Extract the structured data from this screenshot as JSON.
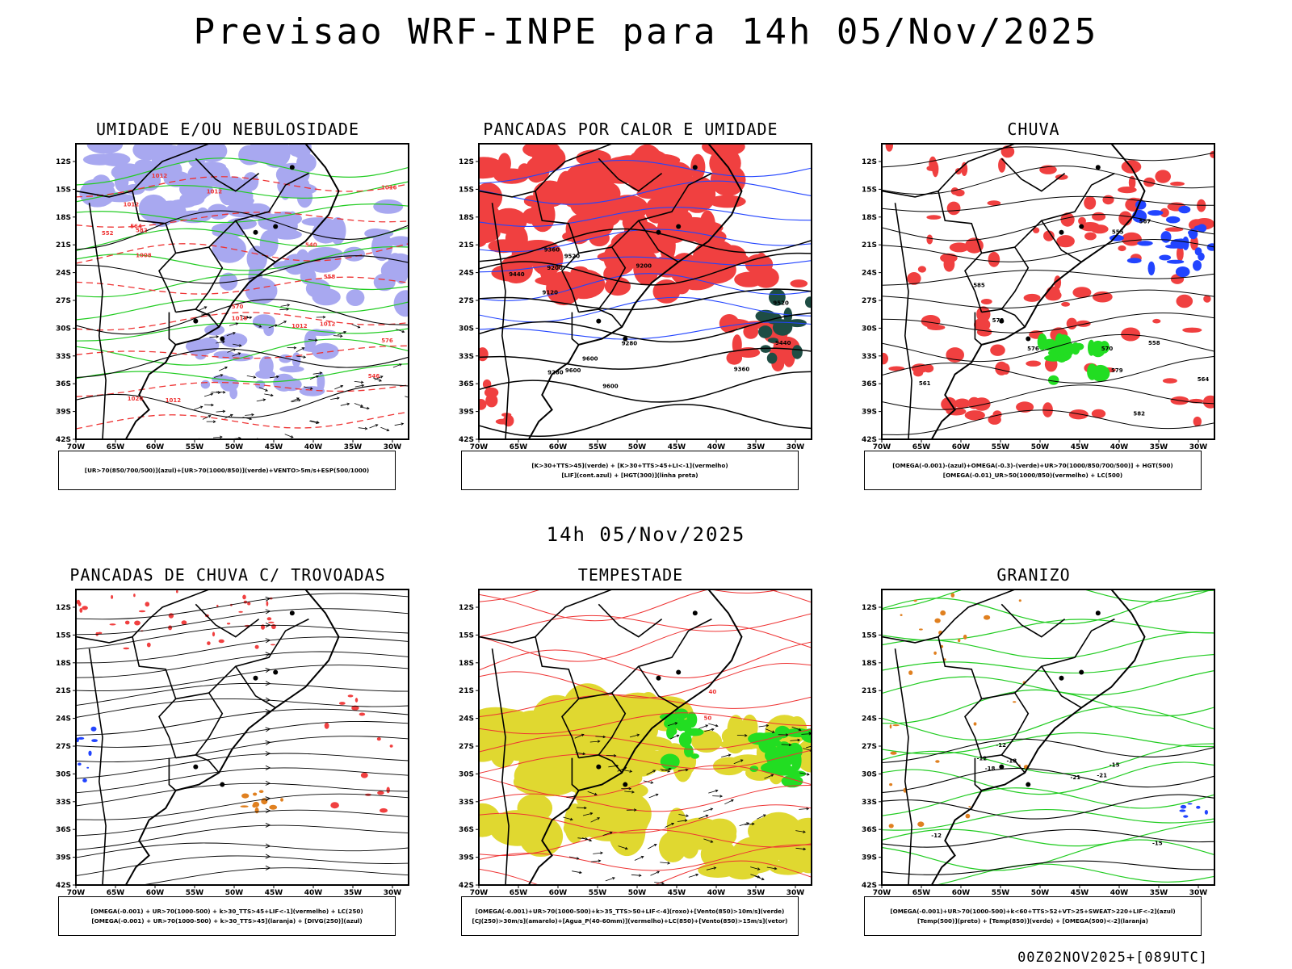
{
  "title": "Previsao WRF-INPE  para 14h 05/Nov/2025",
  "mid_time": "14h 05/Nov/2025",
  "run": "00Z02NOV2025+[089UTC]",
  "axes": {
    "lat_labels": [
      "12S",
      "15S",
      "18S",
      "21S",
      "24S",
      "27S",
      "30S",
      "33S",
      "36S",
      "39S",
      "42S"
    ],
    "lon_labels": [
      "70W",
      "65W",
      "60W",
      "55W",
      "50W",
      "45W",
      "40W",
      "35W",
      "30W"
    ]
  },
  "colors": {
    "moist_mid_blue": "#a8a8f0",
    "moist_low_green": "#22cc22",
    "red_fill": "#f04040",
    "dark_fill": "#1e4d44",
    "blue_contour": "#2244ff",
    "green_fill": "#22dd22",
    "yellow_fill": "#e0d830",
    "orange": "#e08020",
    "red_line": "#ee3333"
  },
  "panels": [
    {
      "title": "UMIDADE E/OU NEBULOSIDADE",
      "legend": [
        "[UR>70(850/700/500)](azul)+[UR>70(1000/850)](verde)+VENTO>5m/s+ESP(500/1000)"
      ],
      "labels": [
        "1012",
        "1008",
        "1012",
        "1012",
        "1012",
        "1016",
        "1012",
        "1020",
        "1016",
        "1012",
        "576",
        "570",
        "564",
        "558",
        "552",
        "546",
        "540",
        "582"
      ]
    },
    {
      "title": "PANCADAS POR CALOR E UMIDADE",
      "legend": [
        "[K>30+TTS>45](verde) + [K>30+TTS>45+LI<-1](vermelho)",
        "[LIF](cont.azul) + [HGT(300)](linha preta)"
      ],
      "labels": [
        "9600",
        "9600",
        "9600",
        "9520",
        "9520",
        "9440",
        "9440",
        "9360",
        "9360",
        "9280",
        "9280",
        "9200",
        "9200",
        "9120"
      ]
    },
    {
      "title": "CHUVA",
      "legend": [
        "[OMEGA(-0.001)-(azul)+OMEGA(-0.3)-(verde)+UR>70(1000/850/700/500)] + HGT(500)",
        "[OMEGA(-0.01)_UR>50(1000/850)(vermelho) + LC(500)"
      ],
      "labels": [
        "585",
        "582",
        "579",
        "576",
        "573",
        "570",
        "567",
        "564",
        "561",
        "558",
        "555"
      ]
    },
    {
      "title": "PANCADAS DE CHUVA C/ TROVOADAS",
      "legend": [
        "[OMEGA(-0.001) + UR>70(1000-500) + k>30_TTS>45+LIF<-1](vermelho) + LC(250)",
        "[OMEGA(-0.001) + UR>70(1000-500) + k>30_TTS>45](laranja) + [DIVG(250)](azul)"
      ],
      "labels": []
    },
    {
      "title": "TEMPESTADE",
      "legend": [
        "[OMEGA(-0.001)+UR>70(1000-500)+k>35_TTS>50+LIF<-4](roxo)+[Vento(850)>10m/s](verde)",
        "[CJ(250)>30m/s](amarelo)+[Agua_P(40-60mm)](vermelho)+LC(850)+[Vento(850)>15m/s](vetor)"
      ],
      "labels": [
        "40",
        "50"
      ]
    },
    {
      "title": "GRANIZO",
      "legend": [
        "[OMEGA(-0.001)+UR>70(1000-500)+k<60+TTS>52+VT>25+SWEAT>220+LIF<-2](azul)",
        "[Temp(500)](preto) + [Temp(850)](verde) + [OMEGA(500)<-2](laranja)"
      ],
      "labels": [
        "-12",
        "-12",
        "-15",
        "-18",
        "-21",
        "-18",
        "-12",
        "-15",
        "-21"
      ]
    }
  ]
}
